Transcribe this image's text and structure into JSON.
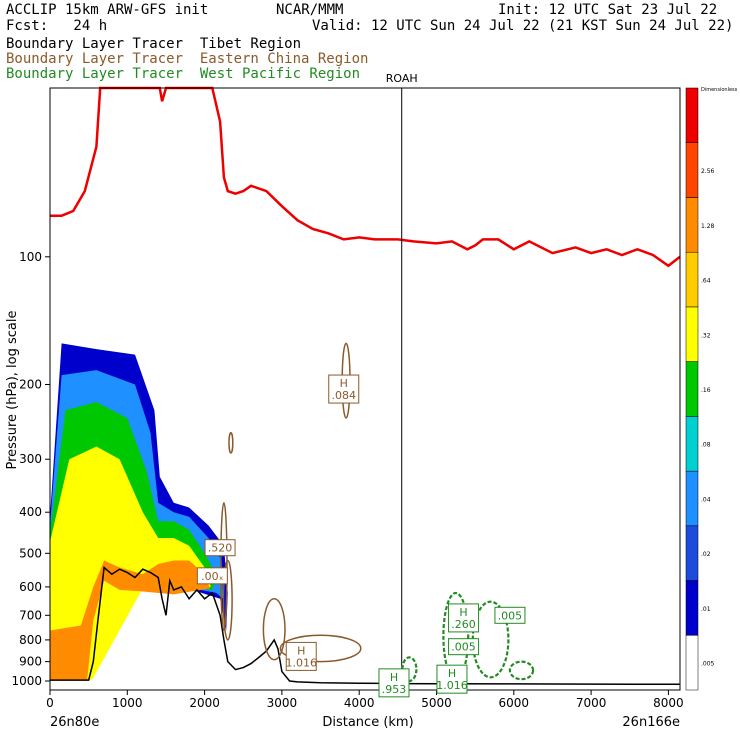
{
  "header": {
    "line1_left": "ACCLIP 15km ARW-GFS init",
    "line1_center": "NCAR/MMM",
    "line1_right": "Init: 12 UTC Sat 23 Jul 22",
    "line2_left": "Fcst:   24 h",
    "line2_right": "Valid: 12 UTC Sun 24 Jul 22 (21 KST Sun 24 Jul 22)",
    "legend": [
      {
        "text": "Boundary Layer Tracer  Tibet Region",
        "color": "#000000"
      },
      {
        "text": "Boundary Layer Tracer  Eastern China Region",
        "color": "#8b5a2b"
      },
      {
        "text": "Boundary Layer Tracer  West Pacific Region",
        "color": "#228b22"
      }
    ]
  },
  "chart_data": {
    "type": "cross-section",
    "xlabel": "Distance (km)",
    "ylabel": "Pressure (hPa), log scale",
    "xlim": [
      0,
      8150
    ],
    "ylim": [
      1050,
      40
    ],
    "y_scale": "log",
    "x_ticks": [
      "0",
      "1000",
      "2000",
      "3000",
      "4000",
      "5000",
      "6000",
      "7000",
      "8000"
    ],
    "y_ticks": [
      "100",
      "200",
      "300",
      "400",
      "500",
      "600",
      "700",
      "800",
      "900",
      "1000"
    ],
    "start_label": "26n80e",
    "end_label": "26n166e",
    "vertical_line": {
      "label": "ROAH",
      "x": 4550
    },
    "colorbar": {
      "top_label": "Dimensionless",
      "labels": [
        ".005",
        ".01",
        ".02",
        ".04",
        ".08",
        ".16",
        ".32",
        ".64",
        "1.28",
        "2.56"
      ],
      "colors": [
        "#ffffff",
        "#0000cd",
        "#1e4bdc",
        "#1e90ff",
        "#00d0d0",
        "#00c800",
        "#ffff00",
        "#ffcc00",
        "#ff8c00",
        "#ff4500",
        "#ee0000"
      ]
    },
    "contour_labels": [
      {
        "id": "ec-h-upper",
        "x": 3800,
        "p": 205,
        "text": "H\n.084",
        "color": "#8b5a2b"
      },
      {
        "id": "ec-520",
        "x": 2200,
        "p": 485,
        "text": ".520",
        "color": "#8b5a2b"
      },
      {
        "id": "ec-00x",
        "x": 2100,
        "p": 565,
        "text": ".00ₓ",
        "color": "#8b5a2b"
      },
      {
        "id": "ec-h-lower",
        "x": 3250,
        "p": 875,
        "text": "H\n1.016",
        "color": "#8b5a2b"
      },
      {
        "id": "wp-h-260",
        "x": 5350,
        "p": 710,
        "text": "H\n.260",
        "color": "#228b22"
      },
      {
        "id": "wp-005a",
        "x": 5950,
        "p": 700,
        "text": ".005",
        "color": "#228b22"
      },
      {
        "id": "wp-005b",
        "x": 5350,
        "p": 830,
        "text": ".005",
        "color": "#228b22"
      },
      {
        "id": "wp-h-low",
        "x": 5200,
        "p": 990,
        "text": "H\n1.016",
        "color": "#228b22"
      },
      {
        "id": "wp-h-953",
        "x": 4450,
        "p": 1010,
        "text": "H\n.953",
        "color": "#228b22"
      }
    ],
    "series": [
      {
        "name": "Tibet Region",
        "color": "#000000",
        "style": "terrain",
        "x": [
          0,
          500,
          560,
          620,
          700,
          800,
          900,
          1000,
          1100,
          1200,
          1300,
          1400,
          1450,
          1500,
          1550,
          1600,
          1700,
          1800,
          1900,
          2000,
          2100,
          2200,
          2250,
          2300,
          2400,
          2500,
          2600,
          2700,
          2800,
          2900,
          2950,
          3000,
          3100,
          3200,
          3500,
          4000,
          4500,
          5000,
          6000,
          7000,
          8150
        ],
        "p": [
          995,
          995,
          900,
          720,
          540,
          560,
          545,
          555,
          570,
          545,
          555,
          570,
          640,
          700,
          580,
          610,
          600,
          640,
          610,
          640,
          620,
          700,
          800,
          900,
          940,
          930,
          910,
          880,
          850,
          800,
          840,
          950,
          1000,
          1005,
          1010,
          1012,
          1014,
          1015,
          1016,
          1017,
          1018
        ]
      },
      {
        "name": "Upper red line",
        "color": "#ee0000",
        "style": "tropopause",
        "x": [
          0,
          150,
          300,
          450,
          600,
          650,
          700,
          900,
          1000,
          1100,
          1200,
          1420,
          1450,
          1500,
          1600,
          1700,
          1800,
          1900,
          2000,
          2100,
          2200,
          2250,
          2300,
          2400,
          2500,
          2600,
          2800,
          3000,
          3200,
          3400,
          3600,
          3800,
          4000,
          4200,
          4500,
          4700,
          5000,
          5200,
          5400,
          5500,
          5600,
          5800,
          6000,
          6200,
          6500,
          6800,
          7000,
          7200,
          7400,
          7600,
          7800,
          8000,
          8150
        ],
        "p": [
          80,
          80,
          78,
          70,
          55,
          40,
          40,
          40,
          40,
          40,
          40,
          40,
          43,
          40,
          40,
          40,
          40,
          40,
          40,
          40,
          48,
          65,
          70,
          71,
          70,
          68,
          70,
          76,
          82,
          86,
          88,
          91,
          90,
          91,
          91,
          92,
          93,
          92,
          96,
          94,
          91,
          91,
          96,
          92,
          98,
          95,
          98,
          96,
          99,
          96,
          99,
          105,
          100
        ]
      }
    ]
  }
}
